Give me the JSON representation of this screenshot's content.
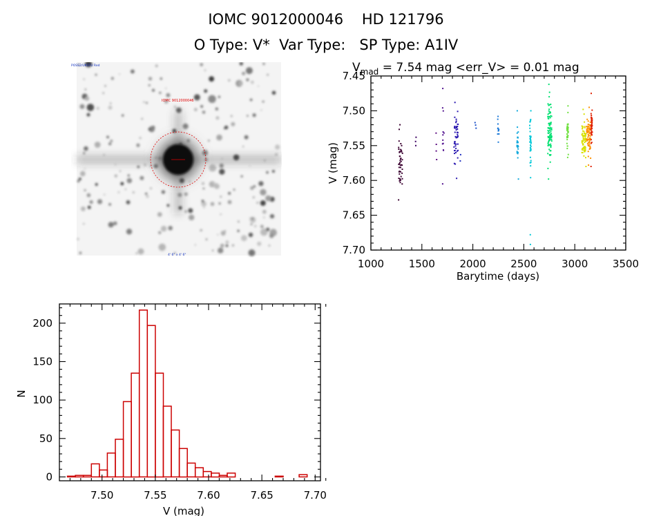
{
  "header": {
    "line1": "IOMC 9012000046    HD 121796",
    "line2": "O Type: V*  Var Type:   SP Type: A1IV"
  },
  "image_panel": {
    "tag_top_left": "POSS2/UKSTU Red",
    "tag_circle": "IOMC 9012000046",
    "tag_bottom_center": "4' 6\" x 4' 6\""
  },
  "colors": {
    "histogram": "#cc0000",
    "axes": "#000000"
  },
  "chart_data": [
    {
      "type": "scatter",
      "title": "V_mad = 7.54 mag <err_V> = 0.01 mag",
      "title_parts": {
        "v": "V",
        "sub": "mad",
        "rest": " = 7.54 mag <err_V> = 0.01 mag"
      },
      "xlabel": "Barytime (days)",
      "ylabel": "V (mag)",
      "xlim": [
        1000,
        3500
      ],
      "ylim": [
        7.7,
        7.45
      ],
      "inverted_y": true,
      "xticks": [
        1000,
        1500,
        2000,
        2500,
        3000,
        3500
      ],
      "yticks": [
        7.45,
        7.5,
        7.55,
        7.6,
        7.65,
        7.7
      ],
      "color_by_time": true,
      "groups": [
        {
          "x": 1290,
          "y_min": 7.52,
          "y_max": 7.628,
          "n": 46,
          "color": "#3a0030"
        },
        {
          "x": 1440,
          "y_min": 7.538,
          "y_max": 7.55,
          "n": 3,
          "color": "#3a0060"
        },
        {
          "x": 1640,
          "y_min": 7.532,
          "y_max": 7.57,
          "n": 4,
          "color": "#5a0a80"
        },
        {
          "x": 1710,
          "y_min": 7.468,
          "y_max": 7.605,
          "n": 12,
          "color": "#50108e"
        },
        {
          "x": 1835,
          "y_min": 7.488,
          "y_max": 7.597,
          "n": 48,
          "color": "#2a18b0"
        },
        {
          "x": 1880,
          "y_min": 7.563,
          "y_max": 7.572,
          "n": 2,
          "color": "#2030c0"
        },
        {
          "x": 2025,
          "y_min": 7.517,
          "y_max": 7.525,
          "n": 3,
          "color": "#1a4fc8"
        },
        {
          "x": 2250,
          "y_min": 7.508,
          "y_max": 7.545,
          "n": 12,
          "color": "#1e7ad8"
        },
        {
          "x": 2440,
          "y_min": 7.5,
          "y_max": 7.598,
          "n": 26,
          "color": "#10a8dc"
        },
        {
          "x": 2565,
          "y_min": 7.5,
          "y_max": 7.596,
          "n": 38,
          "color": "#00c8d8"
        },
        {
          "x": 2565,
          "y_min": 7.678,
          "y_max": 7.692,
          "n": 2,
          "color": "#00c8d8"
        },
        {
          "x": 2755,
          "y_min": 7.462,
          "y_max": 7.598,
          "n": 90,
          "color": "#00e070"
        },
        {
          "x": 2930,
          "y_min": 7.493,
          "y_max": 7.567,
          "n": 40,
          "color": "#70e040"
        },
        {
          "x": 3090,
          "y_min": 7.498,
          "y_max": 7.58,
          "n": 70,
          "color": "#d8e000"
        },
        {
          "x": 3135,
          "y_min": 7.495,
          "y_max": 7.578,
          "n": 70,
          "color": "#ff9000"
        },
        {
          "x": 3165,
          "y_min": 7.475,
          "y_max": 7.58,
          "n": 40,
          "color": "#e02000"
        }
      ]
    },
    {
      "type": "bar",
      "xlabel": "V (mag)",
      "ylabel": "N",
      "xlim": [
        7.46,
        7.705
      ],
      "ylim": [
        -5,
        225
      ],
      "xticks": [
        7.5,
        7.55,
        7.6,
        7.65,
        7.7
      ],
      "yticks": [
        0,
        50,
        100,
        150,
        200
      ],
      "bin_width": 0.0075,
      "bin_start": 7.4675,
      "counts": [
        1,
        2,
        2,
        17,
        9,
        31,
        49,
        98,
        135,
        217,
        197,
        135,
        92,
        61,
        37,
        18,
        12,
        7,
        5,
        2,
        5,
        0,
        0,
        0,
        0,
        0,
        1,
        0,
        0,
        3
      ]
    }
  ]
}
